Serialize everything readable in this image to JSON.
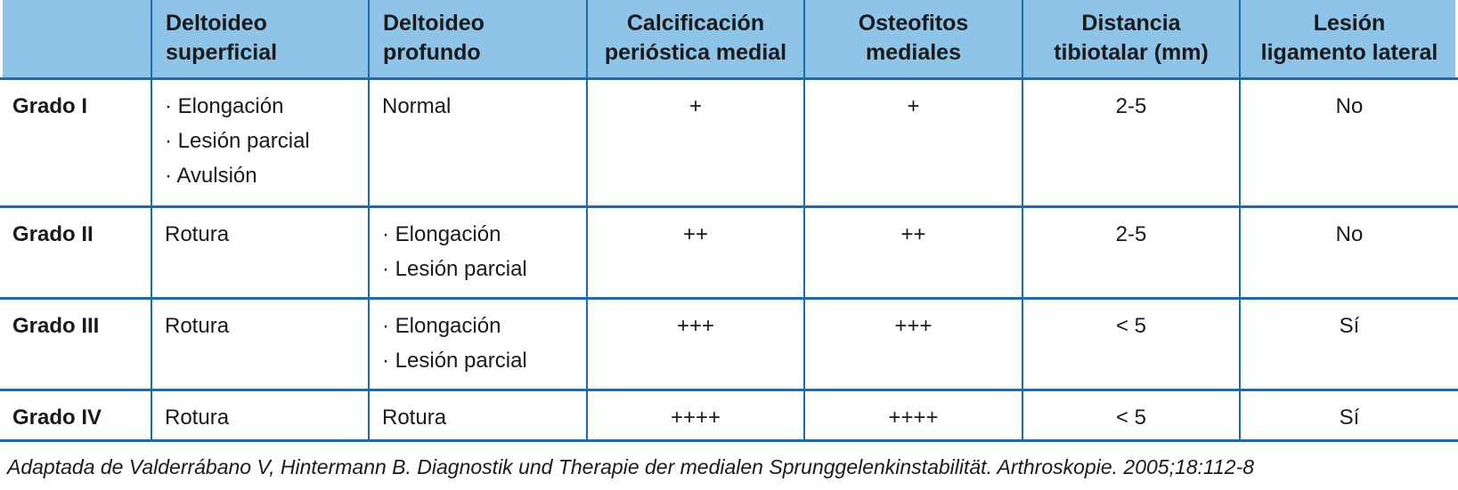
{
  "theme": {
    "header_bg": "#8ec4e8",
    "border_blue": "#1a6cb0",
    "text_color": "#1a1a1a"
  },
  "table": {
    "headers": [
      "",
      "Deltoideo\nsuperficial",
      "Deltoideo\nprofundo",
      "Calcificación\nperióstica medial",
      "Osteofitos\nmediales",
      "Distancia\ntibiotalar (mm)",
      "Lesión\nligamento lateral"
    ],
    "rows": [
      {
        "label": "Grado I",
        "cells": [
          "· Elongación\n· Lesión parcial\n· Avulsión",
          "Normal",
          "+",
          "+",
          "2-5",
          "No"
        ]
      },
      {
        "label": "Grado II",
        "cells": [
          "Rotura",
          "· Elongación\n· Lesión parcial",
          "++",
          "++",
          "2-5",
          "No"
        ]
      },
      {
        "label": "Grado III",
        "cells": [
          "Rotura",
          "· Elongación\n· Lesión parcial",
          "+++",
          "+++",
          "< 5",
          "Sí"
        ]
      },
      {
        "label": "Grado IV",
        "cells": [
          "Rotura",
          "Rotura",
          "++++",
          "++++",
          "< 5",
          "Sí"
        ]
      }
    ]
  },
  "footnote": "Adaptada de Valderrábano V, Hintermann B. Diagnostik und Therapie der medialen Sprunggelenkinstabilität. Arthroskopie. 2005;18:112-8"
}
